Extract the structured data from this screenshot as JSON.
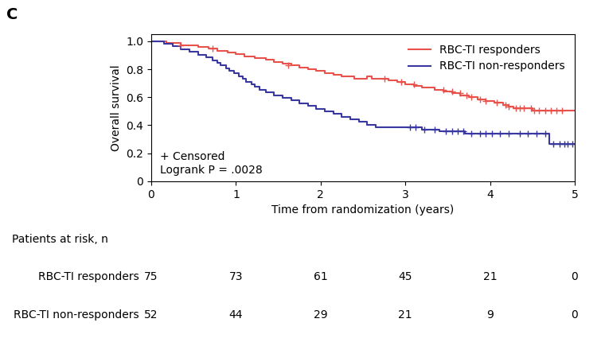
{
  "chart_data": {
    "type": "step",
    "title": "C",
    "xlabel": "Time from randomization (years)",
    "ylabel": "Overall survival",
    "xlim": [
      0,
      5
    ],
    "ylim": [
      0,
      1.05
    ],
    "xticks": [
      0,
      1,
      2,
      3,
      4,
      5
    ],
    "yticks": [
      0,
      0.2,
      0.4,
      0.6,
      0.8,
      {
        "value": 1.0,
        "label": "1.0"
      }
    ],
    "grid": false,
    "legend": "upper right",
    "annotations": [
      "+ Censored\nLogrank P = .0028"
    ],
    "series": [
      {
        "name": "RBC-TI responders",
        "color": "#e8524a",
        "type": "step",
        "x": [
          0.0,
          0.15,
          0.18,
          0.25,
          0.35,
          0.45,
          0.55,
          0.62,
          0.68,
          0.72,
          0.78,
          0.85,
          0.9,
          0.95,
          1.0,
          1.05,
          1.1,
          1.18,
          1.22,
          1.28,
          1.35,
          1.4,
          1.45,
          1.5,
          1.55,
          1.6,
          1.65,
          1.7,
          1.75,
          1.8,
          1.85,
          1.9,
          1.95,
          2.0,
          2.05,
          2.1,
          2.15,
          2.2,
          2.25,
          2.35,
          2.4,
          2.55,
          2.6,
          2.75,
          2.8,
          2.85,
          2.9,
          2.95,
          3.0,
          3.05,
          3.1,
          3.15,
          3.2,
          3.3,
          3.35,
          3.4,
          3.45,
          3.5,
          3.55,
          3.6,
          3.65,
          3.7,
          3.75,
          3.8,
          3.85,
          3.9,
          3.95,
          4.0,
          4.05,
          4.1,
          4.15,
          4.2,
          4.22,
          4.25,
          4.28,
          4.3,
          4.5,
          4.55,
          4.8,
          4.85,
          5.0
        ],
        "values": [
          1.0,
          1.0,
          0.987,
          0.987,
          0.973,
          0.973,
          0.96,
          0.96,
          0.947,
          0.947,
          0.933,
          0.933,
          0.92,
          0.92,
          0.907,
          0.907,
          0.893,
          0.893,
          0.88,
          0.88,
          0.867,
          0.867,
          0.853,
          0.853,
          0.84,
          0.84,
          0.827,
          0.827,
          0.813,
          0.813,
          0.8,
          0.8,
          0.787,
          0.787,
          0.773,
          0.773,
          0.76,
          0.76,
          0.747,
          0.747,
          0.733,
          0.747,
          0.733,
          0.733,
          0.72,
          0.72,
          0.707,
          0.707,
          0.693,
          0.693,
          0.68,
          0.68,
          0.667,
          0.667,
          0.653,
          0.653,
          0.64,
          0.64,
          0.627,
          0.627,
          0.613,
          0.613,
          0.6,
          0.6,
          0.587,
          0.587,
          0.573,
          0.573,
          0.56,
          0.56,
          0.547,
          0.547,
          0.533,
          0.533,
          0.52,
          0.52,
          0.507,
          0.507,
          0.507,
          0.507,
          0.507
        ]
      },
      {
        "name": "RBC-TI non-responders",
        "color": "#3838a0",
        "type": "step",
        "x": [
          0.0,
          0.1,
          0.15,
          0.2,
          0.25,
          0.3,
          0.35,
          0.4,
          0.45,
          0.5,
          0.55,
          0.6,
          0.65,
          0.7,
          0.72,
          0.75,
          0.78,
          0.8,
          0.82,
          0.85,
          0.88,
          0.9,
          0.92,
          0.95,
          0.98,
          1.0,
          1.03,
          1.05,
          1.08,
          1.1,
          1.12,
          1.15,
          1.18,
          1.2,
          1.22,
          1.25,
          1.28,
          1.3,
          1.35,
          1.4,
          1.45,
          1.5,
          1.55,
          1.6,
          1.65,
          1.7,
          1.75,
          1.8,
          1.85,
          1.9,
          1.95,
          2.0,
          2.05,
          2.1,
          2.15,
          2.2,
          2.25,
          2.3,
          2.35,
          2.4,
          2.45,
          2.5,
          2.55,
          2.6,
          2.65,
          2.7,
          2.75,
          2.8,
          2.85,
          2.9,
          2.95,
          3.0,
          3.05,
          3.1,
          3.15,
          3.2,
          3.25,
          3.3,
          3.35,
          3.4,
          3.45,
          3.5,
          3.55,
          3.6,
          3.65,
          3.7,
          3.75,
          3.8,
          3.85,
          3.9,
          3.95,
          4.0,
          4.05,
          4.1,
          4.15,
          4.2,
          4.25,
          4.3,
          4.35,
          4.4,
          4.45,
          4.5,
          4.55,
          4.6,
          4.65,
          4.7,
          4.75,
          4.8,
          4.85,
          4.9,
          4.95,
          5.0
        ],
        "values": [
          1.0,
          1.0,
          0.981,
          0.981,
          0.962,
          0.962,
          0.942,
          0.942,
          0.923,
          0.923,
          0.904,
          0.904,
          0.885,
          0.885,
          0.865,
          0.865,
          0.846,
          0.846,
          0.827,
          0.827,
          0.808,
          0.808,
          0.788,
          0.788,
          0.769,
          0.769,
          0.75,
          0.75,
          0.731,
          0.731,
          0.712,
          0.712,
          0.692,
          0.692,
          0.673,
          0.673,
          0.654,
          0.654,
          0.635,
          0.635,
          0.615,
          0.615,
          0.596,
          0.596,
          0.577,
          0.577,
          0.558,
          0.558,
          0.538,
          0.538,
          0.519,
          0.519,
          0.5,
          0.5,
          0.481,
          0.481,
          0.462,
          0.462,
          0.442,
          0.442,
          0.423,
          0.423,
          0.404,
          0.404,
          0.385,
          0.385,
          0.385,
          0.385,
          0.385,
          0.385,
          0.385,
          0.385,
          0.385,
          0.385,
          0.385,
          0.37,
          0.37,
          0.37,
          0.37,
          0.355,
          0.355,
          0.355,
          0.355,
          0.355,
          0.355,
          0.34,
          0.34,
          0.34,
          0.34,
          0.34,
          0.34,
          0.34,
          0.34,
          0.34,
          0.34,
          0.34,
          0.34,
          0.34,
          0.34,
          0.34,
          0.34,
          0.34,
          0.34,
          0.34,
          0.34,
          0.265,
          0.265,
          0.265,
          0.265,
          0.265,
          0.265,
          0.265
        ]
      },
      {
        "color": "#e8524a",
        "type": "scatter",
        "marker": "plus",
        "x": [
          0.35,
          0.72,
          1.62,
          2.75,
          2.95,
          3.1,
          3.45,
          3.55,
          3.65,
          3.72,
          3.78,
          3.88,
          3.95,
          4.08,
          4.18,
          4.22,
          4.3,
          4.35,
          4.4,
          4.48,
          4.52,
          4.58,
          4.65,
          4.72,
          4.78,
          4.85
        ],
        "values": [
          0.973,
          0.947,
          0.827,
          0.733,
          0.707,
          0.693,
          0.653,
          0.64,
          0.627,
          0.613,
          0.6,
          0.587,
          0.573,
          0.56,
          0.547,
          0.533,
          0.52,
          0.52,
          0.52,
          0.52,
          0.507,
          0.507,
          0.507,
          0.507,
          0.507,
          0.507
        ]
      },
      {
        "color": "#3838a0",
        "type": "scatter",
        "marker": "plus",
        "x": [
          3.05,
          3.12,
          3.22,
          3.35,
          3.48,
          3.55,
          3.62,
          3.68,
          3.78,
          3.88,
          3.95,
          4.02,
          4.12,
          4.22,
          4.35,
          4.45,
          4.55,
          4.65,
          4.75,
          4.82,
          4.88,
          4.92,
          4.97
        ],
        "values": [
          0.385,
          0.385,
          0.37,
          0.37,
          0.355,
          0.355,
          0.355,
          0.355,
          0.34,
          0.34,
          0.34,
          0.34,
          0.34,
          0.34,
          0.34,
          0.34,
          0.34,
          0.34,
          0.265,
          0.265,
          0.265,
          0.265,
          0.265
        ]
      }
    ],
    "risk_table": {
      "title": "Patients at risk, n",
      "x": [
        0,
        1,
        2,
        3,
        4,
        5
      ],
      "rows": [
        {
          "name": "RBC-TI responders",
          "values": [
            75,
            73,
            61,
            45,
            21,
            0
          ]
        },
        {
          "name": "RBC-TI non-responders",
          "values": [
            52,
            44,
            29,
            21,
            9,
            0
          ]
        }
      ]
    }
  }
}
